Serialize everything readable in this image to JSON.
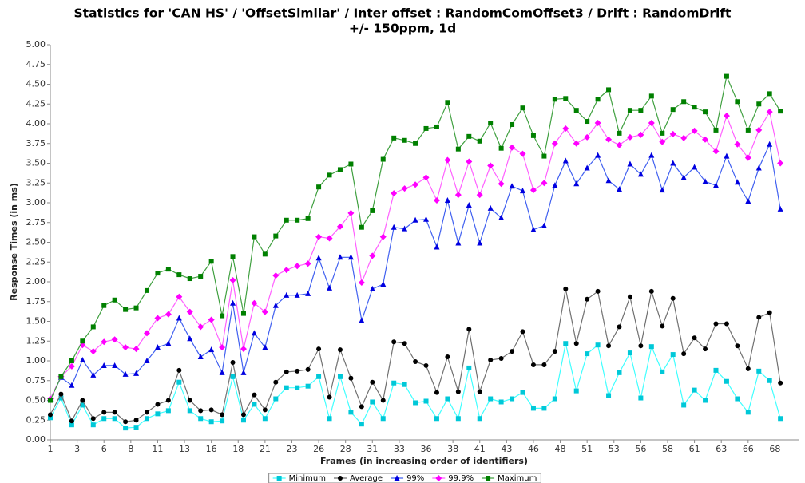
{
  "chart_data": {
    "type": "line",
    "title": [
      "Statistics for 'CAN HS' / 'OffsetSimilar' / Inter offset : RandomComOffset3 / Drift : RandomDrift",
      "+/- 150ppm, 1d"
    ],
    "x_label": "Frames (in increasing order of identifiers)",
    "y_label": "Response Times (in ms)",
    "x": [
      1,
      2,
      3,
      4,
      5,
      6,
      7,
      8,
      9,
      10,
      11,
      12,
      13,
      14,
      15,
      16,
      17,
      18,
      19,
      20,
      21,
      22,
      23,
      24,
      25,
      26,
      27,
      28,
      29,
      30,
      31,
      32,
      33,
      34,
      35,
      36,
      37,
      38,
      39,
      40,
      41,
      42,
      43,
      44,
      45,
      46,
      47,
      48,
      49,
      50,
      51,
      52,
      53,
      54,
      55,
      56,
      57,
      58,
      59,
      60,
      61,
      62,
      63,
      64,
      65,
      66,
      67,
      68,
      69
    ],
    "xlim": [
      1,
      70.7
    ],
    "xticks": [
      1,
      {
        "value": 3.5,
        "label": "3"
      },
      6,
      {
        "value": 8.5,
        "label": "8"
      },
      11,
      {
        "value": 13.5,
        "label": "13"
      },
      16,
      {
        "value": 18.5,
        "label": "18"
      },
      21,
      {
        "value": 23.5,
        "label": "23"
      },
      26,
      {
        "value": 28.5,
        "label": "28"
      },
      31,
      {
        "value": 33.5,
        "label": "33"
      },
      36,
      {
        "value": 38.5,
        "label": "38"
      },
      41,
      {
        "value": 43.5,
        "label": "43"
      },
      46,
      {
        "value": 48.5,
        "label": "48"
      },
      51,
      {
        "value": 53.5,
        "label": "53"
      },
      56,
      {
        "value": 58.5,
        "label": "58"
      },
      61,
      {
        "value": 63.5,
        "label": "63"
      },
      66,
      {
        "value": 68.5,
        "label": "68"
      }
    ],
    "ylim": [
      0,
      5
    ],
    "yticks": [
      {
        "value": 0,
        "label": "0.00"
      },
      {
        "value": 0.25,
        "label": "0.25"
      },
      {
        "value": 0.5,
        "label": "0.50"
      },
      {
        "value": 0.75,
        "label": "0.75"
      },
      {
        "value": 1,
        "label": "1.00"
      },
      {
        "value": 1.25,
        "label": "1.25"
      },
      {
        "value": 1.5,
        "label": "1.50"
      },
      {
        "value": 1.75,
        "label": "1.75"
      },
      {
        "value": 2,
        "label": "2.00"
      },
      {
        "value": 2.25,
        "label": "2.25"
      },
      {
        "value": 2.5,
        "label": "2.50"
      },
      {
        "value": 2.75,
        "label": "2.75"
      },
      {
        "value": 3,
        "label": "3.00"
      },
      {
        "value": 3.25,
        "label": "3.25"
      },
      {
        "value": 3.5,
        "label": "3.50"
      },
      {
        "value": 3.75,
        "label": "3.75"
      },
      {
        "value": 4,
        "label": "4.00"
      },
      {
        "value": 4.25,
        "label": "4.25"
      },
      {
        "value": 4.5,
        "label": "4.50"
      },
      {
        "value": 4.75,
        "label": "4.75"
      },
      {
        "value": 5,
        "label": "5.00"
      }
    ],
    "grid": false,
    "legend": "bottom",
    "series": [
      {
        "name": "Minimum",
        "color": "#00c8d8",
        "line_color": "#40ffff",
        "marker": "square",
        "values": [
          0.28,
          0.53,
          0.19,
          0.44,
          0.19,
          0.27,
          0.27,
          0.15,
          0.16,
          0.27,
          0.33,
          0.37,
          0.73,
          0.37,
          0.27,
          0.23,
          0.24,
          0.8,
          0.25,
          0.45,
          0.27,
          0.52,
          0.66,
          0.66,
          0.68,
          0.8,
          0.27,
          0.8,
          0.35,
          0.2,
          0.48,
          0.27,
          0.72,
          0.7,
          0.47,
          0.49,
          0.27,
          0.52,
          0.27,
          0.91,
          0.27,
          0.52,
          0.48,
          0.52,
          0.6,
          0.4,
          0.4,
          0.52,
          1.22,
          0.62,
          1.09,
          1.2,
          0.56,
          0.85,
          1.1,
          0.53,
          1.18,
          0.86,
          1.08,
          0.44,
          0.63,
          0.5,
          0.88,
          0.74,
          0.52,
          0.35,
          0.87,
          0.75,
          0.27
        ]
      },
      {
        "name": "Average",
        "color": "#000000",
        "line_color": "#707070",
        "marker": "circle",
        "values": [
          0.32,
          0.58,
          0.24,
          0.5,
          0.27,
          0.35,
          0.35,
          0.23,
          0.25,
          0.35,
          0.45,
          0.5,
          0.88,
          0.5,
          0.37,
          0.38,
          0.32,
          0.98,
          0.32,
          0.57,
          0.38,
          0.73,
          0.86,
          0.87,
          0.89,
          1.15,
          0.54,
          1.14,
          0.78,
          0.42,
          0.73,
          0.5,
          1.24,
          1.22,
          0.99,
          0.94,
          0.6,
          1.05,
          0.61,
          1.4,
          0.61,
          1.01,
          1.03,
          1.12,
          1.37,
          0.95,
          0.95,
          1.12,
          1.91,
          1.22,
          1.78,
          1.88,
          1.19,
          1.43,
          1.81,
          1.19,
          1.88,
          1.44,
          1.79,
          1.09,
          1.29,
          1.15,
          1.47,
          1.47,
          1.19,
          0.9,
          1.55,
          1.61,
          0.72
        ]
      },
      {
        "name": "99%",
        "color": "#0000e0",
        "line_color": "#4060f0",
        "marker": "triangle",
        "values": [
          0.52,
          0.79,
          0.69,
          1.01,
          0.82,
          0.94,
          0.94,
          0.83,
          0.84,
          1.0,
          1.17,
          1.22,
          1.54,
          1.28,
          1.05,
          1.14,
          0.85,
          1.73,
          0.85,
          1.35,
          1.17,
          1.7,
          1.83,
          1.83,
          1.85,
          2.3,
          1.92,
          2.31,
          2.31,
          1.51,
          1.91,
          1.97,
          2.69,
          2.67,
          2.78,
          2.79,
          2.44,
          3.03,
          2.49,
          2.97,
          2.49,
          2.93,
          2.81,
          3.21,
          3.15,
          2.66,
          2.71,
          3.22,
          3.53,
          3.24,
          3.44,
          3.6,
          3.28,
          3.17,
          3.49,
          3.36,
          3.6,
          3.16,
          3.5,
          3.32,
          3.45,
          3.27,
          3.22,
          3.59,
          3.26,
          3.02,
          3.44,
          3.74,
          2.92
        ]
      },
      {
        "name": "99.9%",
        "color": "#ff00ff",
        "line_color": "#ff60ff",
        "marker": "diamond",
        "values": [
          0.52,
          0.8,
          0.93,
          1.2,
          1.12,
          1.24,
          1.27,
          1.17,
          1.15,
          1.35,
          1.54,
          1.59,
          1.81,
          1.62,
          1.43,
          1.52,
          1.17,
          2.02,
          1.15,
          1.73,
          1.62,
          2.08,
          2.15,
          2.2,
          2.23,
          2.57,
          2.55,
          2.7,
          2.87,
          1.99,
          2.33,
          2.57,
          3.12,
          3.18,
          3.23,
          3.32,
          3.03,
          3.54,
          3.1,
          3.52,
          3.1,
          3.47,
          3.24,
          3.7,
          3.62,
          3.16,
          3.25,
          3.75,
          3.94,
          3.75,
          3.83,
          4.01,
          3.8,
          3.73,
          3.83,
          3.86,
          4.01,
          3.77,
          3.87,
          3.82,
          3.91,
          3.8,
          3.65,
          4.1,
          3.74,
          3.57,
          3.92,
          4.15,
          3.5
        ]
      },
      {
        "name": "Maximum",
        "color": "#008000",
        "line_color": "#40a040",
        "marker": "square",
        "values": [
          0.5,
          0.8,
          1.0,
          1.25,
          1.43,
          1.7,
          1.77,
          1.65,
          1.67,
          1.89,
          2.11,
          2.16,
          2.09,
          2.04,
          2.07,
          2.26,
          1.57,
          2.32,
          1.6,
          2.57,
          2.35,
          2.58,
          2.78,
          2.78,
          2.8,
          3.2,
          3.35,
          3.42,
          3.49,
          2.69,
          2.9,
          3.55,
          3.82,
          3.79,
          3.75,
          3.94,
          3.96,
          4.27,
          3.68,
          3.84,
          3.78,
          4.01,
          3.69,
          3.99,
          4.2,
          3.85,
          3.59,
          4.31,
          4.32,
          4.17,
          4.03,
          4.31,
          4.43,
          3.88,
          4.17,
          4.17,
          4.35,
          3.88,
          4.18,
          4.28,
          4.21,
          4.15,
          3.92,
          4.6,
          4.28,
          3.92,
          4.25,
          4.38,
          4.16
        ]
      }
    ]
  }
}
